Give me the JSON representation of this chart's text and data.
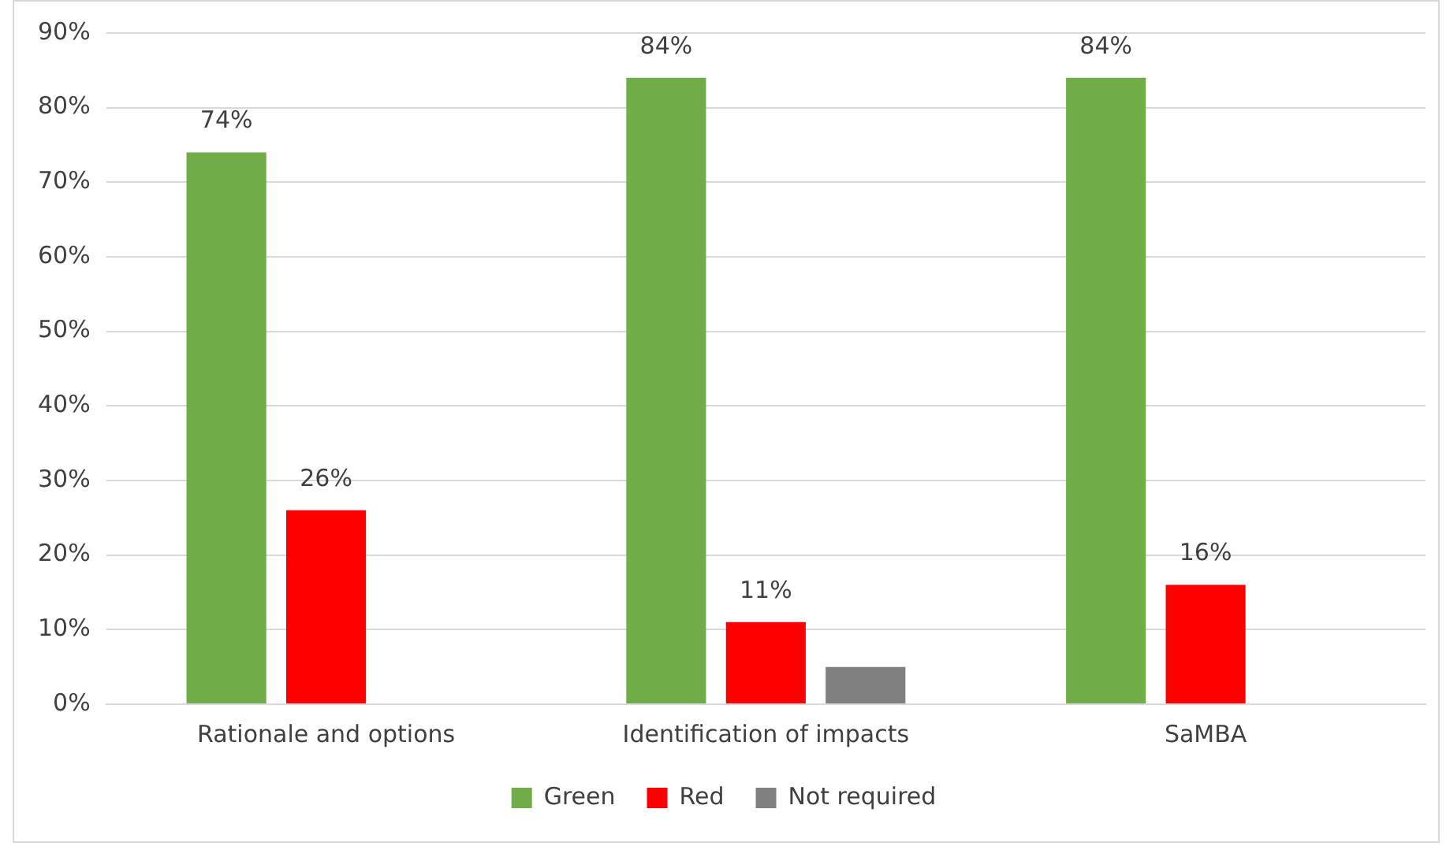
{
  "chart_data": {
    "type": "bar",
    "categories": [
      "Rationale and options",
      "Identification of impacts",
      "SaMBA"
    ],
    "series": [
      {
        "name": "Green",
        "color": "#70ad47",
        "values": [
          74,
          84,
          84
        ],
        "value_labels": [
          "74%",
          "84%",
          "84%"
        ]
      },
      {
        "name": "Red",
        "color": "#ff0000",
        "values": [
          26,
          11,
          16
        ],
        "value_labels": [
          "26%",
          "11%",
          "16%"
        ]
      },
      {
        "name": "Not required",
        "color": "#808080",
        "values": [
          null,
          5,
          null
        ],
        "value_labels": [
          null,
          null,
          null
        ]
      }
    ],
    "ylim": [
      0,
      90
    ],
    "yticks": [
      {
        "value": 0,
        "label": "0%"
      },
      {
        "value": 10,
        "label": "10%"
      },
      {
        "value": 20,
        "label": "20%"
      },
      {
        "value": 30,
        "label": "30%"
      },
      {
        "value": 40,
        "label": "40%"
      },
      {
        "value": 50,
        "label": "50%"
      },
      {
        "value": 60,
        "label": "60%"
      },
      {
        "value": 70,
        "label": "70%"
      },
      {
        "value": 80,
        "label": "80%"
      },
      {
        "value": 90,
        "label": "90%"
      }
    ],
    "grid": "y",
    "legend": "bottom"
  }
}
